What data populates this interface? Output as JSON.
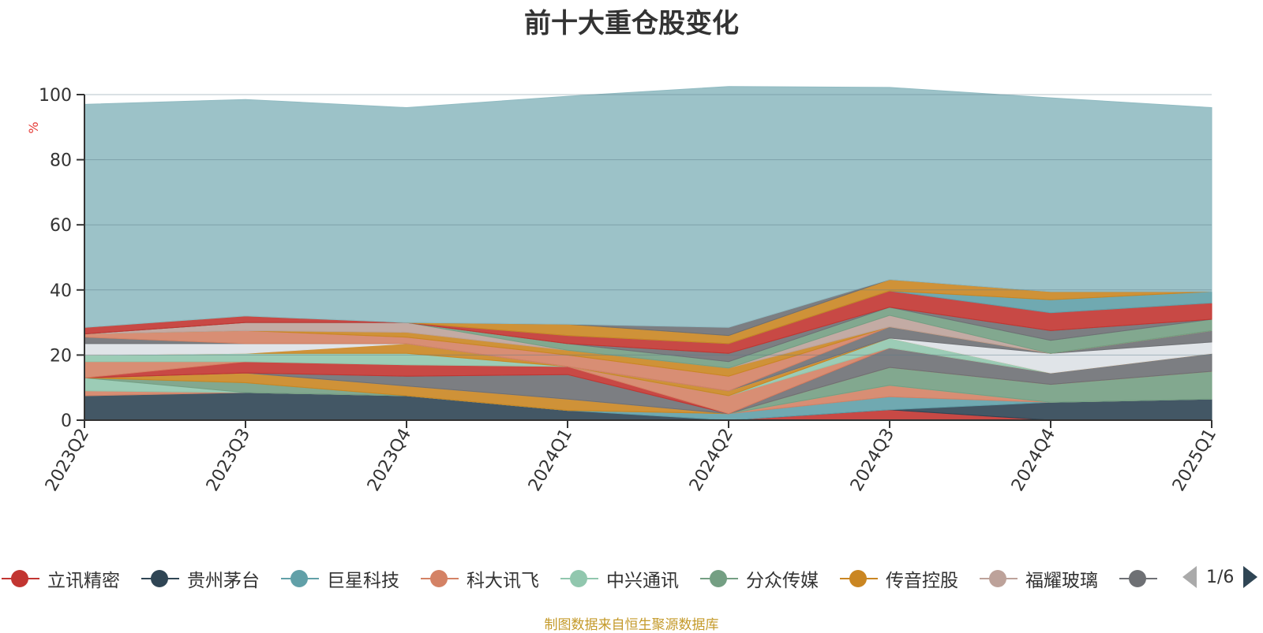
{
  "chart_data": {
    "type": "area",
    "stacked": true,
    "title": "前十大重仓股变化",
    "ylabel": "%",
    "ylim": [
      0,
      100
    ],
    "yticks": [
      0,
      20,
      40,
      60,
      80,
      100
    ],
    "categories": [
      "2023Q2",
      "2023Q3",
      "2023Q4",
      "2024Q1",
      "2024Q2",
      "2024Q3",
      "2024Q4",
      "2025Q1"
    ],
    "grid": true,
    "legend_position": "bottom",
    "legend_page": "1/6",
    "series": [
      {
        "name": "立讯精密",
        "color": "#c23531",
        "values": [
          0,
          0,
          0,
          0,
          0,
          3.2,
          0,
          0
        ]
      },
      {
        "name": "贵州茅台",
        "color": "#2f4554",
        "values": [
          7.5,
          8.5,
          7.5,
          3.0,
          0,
          0,
          5.5,
          6.5
        ]
      },
      {
        "name": "巨星科技",
        "color": "#61a0a8",
        "values": [
          0,
          0,
          0,
          0,
          2.0,
          4.0,
          0,
          0
        ]
      },
      {
        "name": "科大讯飞",
        "color": "#d48265",
        "values": [
          1.5,
          0,
          0,
          0,
          0,
          3.5,
          0,
          0
        ]
      },
      {
        "name": "中兴通讯",
        "color": "#91c7ae",
        "values": [
          4.0,
          0,
          0,
          0,
          0,
          0,
          0,
          0
        ]
      },
      {
        "name": "分众传媒",
        "color": "#749f83",
        "values": [
          0,
          3.0,
          0,
          0,
          0,
          5.5,
          5.5,
          8.5
        ]
      },
      {
        "name": "传音控股",
        "color": "#ca8622",
        "values": [
          0,
          3.0,
          3.0,
          3.5,
          0,
          0,
          0,
          0
        ]
      },
      {
        "name": "福耀玻璃",
        "color": "#bda29a",
        "values": [
          0,
          0,
          0,
          0,
          0,
          0,
          0,
          0
        ]
      },
      {
        "name": "",
        "color": "#6e7074",
        "values": [
          0,
          0,
          3.0,
          7.5,
          0,
          6.0,
          3.5,
          5.5
        ]
      },
      {
        "name": "",
        "color": "#c23531",
        "values": [
          0,
          3.5,
          3.5,
          2.5,
          0,
          0,
          0,
          0
        ]
      },
      {
        "name": "",
        "color": "#d48265",
        "values": [
          5.0,
          0,
          0,
          0,
          5.5,
          0,
          0,
          0
        ]
      },
      {
        "name": "",
        "color": "#91c7ae",
        "values": [
          2.0,
          2.5,
          3.5,
          0,
          0,
          3.0,
          0,
          0
        ]
      },
      {
        "name": "",
        "color": "#ca8622",
        "values": [
          0,
          0,
          3.0,
          0,
          1.5,
          0,
          0,
          0
        ]
      },
      {
        "name": "",
        "color": "#dde1e6",
        "values": [
          3.5,
          3.0,
          0,
          0,
          0,
          0,
          6.0,
          3.5
        ]
      },
      {
        "name": "",
        "color": "#6e7074",
        "values": [
          2.0,
          0,
          0,
          0,
          0,
          3.5,
          0,
          3.5
        ]
      },
      {
        "name": "",
        "color": "#d48265",
        "values": [
          1.0,
          4.0,
          2.0,
          3.5,
          4.5,
          0,
          0,
          0
        ]
      },
      {
        "name": "",
        "color": "#ca8622",
        "values": [
          0,
          0,
          1.5,
          1.5,
          2.5,
          0,
          0,
          0
        ]
      },
      {
        "name": "",
        "color": "#bda29a",
        "values": [
          0,
          2.5,
          3.0,
          0,
          0,
          3.5,
          0,
          0
        ]
      },
      {
        "name": "",
        "color": "#749f83",
        "values": [
          0,
          0,
          0,
          2.0,
          2.0,
          2.5,
          4.0,
          3.5
        ]
      },
      {
        "name": "",
        "color": "#6e7074",
        "values": [
          0,
          0,
          0,
          0,
          2.5,
          0,
          3.0,
          0
        ]
      },
      {
        "name": "",
        "color": "#c23531",
        "values": [
          2.0,
          2.0,
          0,
          2.5,
          3.0,
          5.0,
          5.5,
          5.0
        ]
      },
      {
        "name": "",
        "color": "#61a0a8",
        "values": [
          0,
          0,
          0,
          0,
          0,
          0,
          4.0,
          3.5
        ]
      },
      {
        "name": "",
        "color": "#ca8622",
        "values": [
          0,
          0,
          0,
          3.5,
          2.5,
          3.5,
          2.5,
          0
        ]
      },
      {
        "name": "",
        "color": "#6e7074",
        "values": [
          0,
          0,
          0,
          0,
          2.5,
          0,
          0,
          0
        ]
      },
      {
        "name": "",
        "color": "#91bbc2",
        "values": [
          68.5,
          66.5,
          66.0,
          70.0,
          74.0,
          59.0,
          59.5,
          56.5
        ]
      }
    ]
  },
  "footer": {
    "source": "制图数据来自恒生聚源数据库"
  }
}
